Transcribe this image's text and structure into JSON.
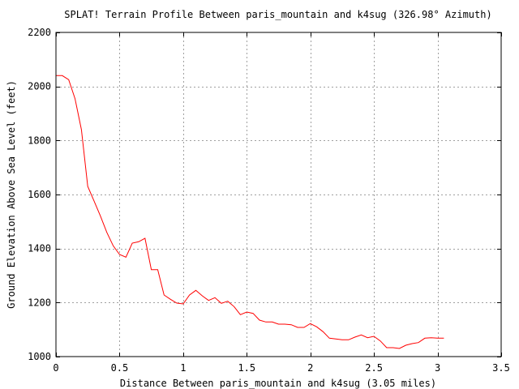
{
  "chart_data": {
    "type": "line",
    "title": "SPLAT! Terrain Profile Between paris_mountain and k4sug (326.98° Azimuth)",
    "xlabel": "Distance Between paris_mountain and k4sug (3.05 miles)",
    "ylabel": "Ground Elevation Above Sea Level (feet)",
    "xlim": [
      0,
      3.5
    ],
    "ylim": [
      1000,
      2200
    ],
    "xticks": [
      0,
      0.5,
      1,
      1.5,
      2,
      2.5,
      3,
      3.5
    ],
    "yticks": [
      1000,
      1200,
      1400,
      1600,
      1800,
      2000,
      2200
    ],
    "xtick_labels": [
      "0",
      "0.5",
      "1",
      "1.5",
      "2",
      "2.5",
      "3",
      "3.5"
    ],
    "ytick_labels": [
      "1000",
      "1200",
      "1400",
      "1600",
      "1800",
      "2000",
      "2200"
    ],
    "grid": true,
    "line_color": "#ff0000",
    "series": [
      {
        "x": [
          0,
          0.05,
          0.1,
          0.15,
          0.2,
          0.25,
          0.3,
          0.35,
          0.4,
          0.45,
          0.5,
          0.55,
          0.6,
          0.65,
          0.7,
          0.75,
          0.8,
          0.85,
          0.9,
          0.95,
          1.0,
          1.05,
          1.1,
          1.15,
          1.2,
          1.25,
          1.3,
          1.35,
          1.4,
          1.45,
          1.5,
          1.55,
          1.6,
          1.65,
          1.7,
          1.75,
          1.8,
          1.85,
          1.9,
          1.95,
          2.0,
          2.05,
          2.1,
          2.15,
          2.2,
          2.25,
          2.3,
          2.35,
          2.4,
          2.45,
          2.5,
          2.55,
          2.6,
          2.65,
          2.7,
          2.75,
          2.8,
          2.85,
          2.9,
          2.95,
          3.0,
          3.05
        ],
        "values": [
          2040,
          2040,
          2025,
          1955,
          1840,
          1630,
          1575,
          1520,
          1460,
          1410,
          1378,
          1368,
          1420,
          1425,
          1438,
          1322,
          1322,
          1228,
          1212,
          1198,
          1195,
          1228,
          1245,
          1225,
          1208,
          1218,
          1197,
          1205,
          1185,
          1155,
          1165,
          1160,
          1135,
          1128,
          1128,
          1120,
          1120,
          1118,
          1108,
          1108,
          1122,
          1110,
          1092,
          1068,
          1065,
          1062,
          1062,
          1072,
          1080,
          1070,
          1075,
          1058,
          1033,
          1033,
          1030,
          1042,
          1048,
          1052,
          1068,
          1070,
          1068,
          1068
        ]
      }
    ]
  }
}
